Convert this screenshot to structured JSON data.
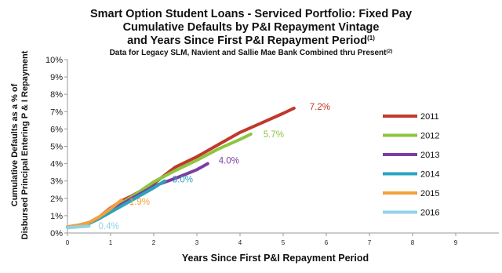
{
  "chart_data": {
    "type": "line",
    "title": "Smart Option Student Loans - Serviced Portfolio: Fixed Pay",
    "title_line2": "Cumulative Defaults by P&I Repayment Vintage",
    "title_line3": "and Years Since First P&I Repayment Period",
    "title_sup": "(1)",
    "subtitle": "Data for Legacy SLM, Navient and Sallie Mae Bank Combined thru Present",
    "subtitle_sup": "(2)",
    "xlabel": "Years Since First P&I Repayment Period",
    "ylabel_line1": "Cumulative Defaults as a % of",
    "ylabel_line2": "Disbursed Principal Entering P & I Repayment",
    "xlim": [
      0,
      10
    ],
    "ylim": [
      0,
      10
    ],
    "x_ticks": [
      "0",
      "1",
      "2",
      "3",
      "4",
      "5",
      "6",
      "7",
      "8",
      "9"
    ],
    "y_ticks": [
      "0%",
      "1%",
      "2%",
      "3%",
      "4%",
      "5%",
      "6%",
      "7%",
      "8%",
      "9%",
      "10%"
    ],
    "grid": false,
    "legend_position": "right",
    "series": [
      {
        "name": "2011",
        "color": "#c0392b",
        "end_label": "7.2%",
        "x": [
          0,
          0.25,
          0.5,
          0.75,
          1,
          1.25,
          1.5,
          2,
          2.5,
          3,
          3.5,
          4,
          4.5,
          5,
          5.25
        ],
        "y": [
          0.35,
          0.45,
          0.6,
          0.95,
          1.45,
          1.85,
          2.15,
          2.85,
          3.8,
          4.4,
          5.1,
          5.8,
          6.35,
          6.9,
          7.2
        ]
      },
      {
        "name": "2012",
        "color": "#8cc63f",
        "end_label": "5.7%",
        "x": [
          0,
          0.25,
          0.5,
          0.75,
          1,
          1.5,
          2,
          2.5,
          3,
          3.5,
          4,
          4.25
        ],
        "y": [
          0.35,
          0.45,
          0.6,
          0.9,
          1.35,
          2.1,
          2.95,
          3.6,
          4.2,
          4.85,
          5.4,
          5.7
        ]
      },
      {
        "name": "2013",
        "color": "#7b3fa0",
        "end_label": "4.0%",
        "x": [
          0,
          0.25,
          0.5,
          0.75,
          1,
          1.5,
          2,
          2.5,
          3,
          3.25
        ],
        "y": [
          0.35,
          0.45,
          0.55,
          0.85,
          1.3,
          2.0,
          2.7,
          3.15,
          3.65,
          4.0
        ]
      },
      {
        "name": "2014",
        "color": "#2aa3bf",
        "end_label": "3.0%",
        "x": [
          0,
          0.25,
          0.5,
          0.75,
          1,
          1.5,
          2,
          2.25
        ],
        "y": [
          0.35,
          0.45,
          0.55,
          0.85,
          1.2,
          1.9,
          2.6,
          3.0
        ]
      },
      {
        "name": "2015",
        "color": "#f4a13a",
        "end_label": "1.9%",
        "x": [
          0,
          0.25,
          0.5,
          0.75,
          1,
          1.25
        ],
        "y": [
          0.35,
          0.45,
          0.6,
          0.95,
          1.4,
          1.9
        ]
      },
      {
        "name": "2016",
        "color": "#8fd3e8",
        "end_label": "0.4%",
        "x": [
          0,
          0.25,
          0.5
        ],
        "y": [
          0.3,
          0.35,
          0.4
        ]
      }
    ]
  }
}
